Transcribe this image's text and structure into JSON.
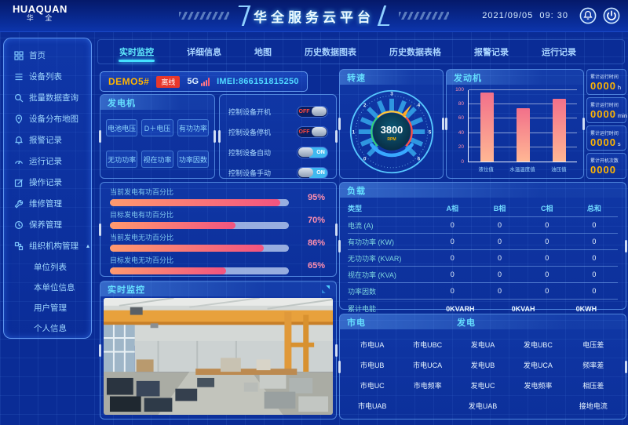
{
  "header": {
    "logo_title": "HUAQUAN",
    "logo_subtitle": "华 全",
    "app_title": "华全服务云平台",
    "date": "2021/09/05",
    "time": "09: 30"
  },
  "sidebar": {
    "items": [
      {
        "label": "首页",
        "icon": "home-grid"
      },
      {
        "label": "设备列表",
        "icon": "device-list"
      },
      {
        "label": "批量数据查询",
        "icon": "search"
      },
      {
        "label": "设备分布地图",
        "icon": "map-pin"
      },
      {
        "label": "报警记录",
        "icon": "alarm"
      },
      {
        "label": "运行记录",
        "icon": "runtime"
      },
      {
        "label": "操作记录",
        "icon": "edit"
      },
      {
        "label": "维修管理",
        "icon": "repair"
      },
      {
        "label": "保养管理",
        "icon": "maintenance"
      },
      {
        "label": "组织机构管理",
        "icon": "organization",
        "expanded": true
      }
    ],
    "subitems": [
      {
        "label": "单位列表"
      },
      {
        "label": "本单位信息"
      },
      {
        "label": "用户管理"
      },
      {
        "label": "个人信息"
      }
    ]
  },
  "tabs": [
    {
      "label": "实时监控",
      "active": true
    },
    {
      "label": "详细信息",
      "active": false
    },
    {
      "label": "地图",
      "active": false
    },
    {
      "label": "历史数据图表",
      "active": false
    },
    {
      "label": "历史数据表格",
      "active": false
    },
    {
      "label": "报警记录",
      "active": false
    },
    {
      "label": "运行记录",
      "active": false
    }
  ],
  "device": {
    "name": "DEMO5#",
    "status_badge": "离线",
    "network": "5G",
    "imei": "IMEI:866151815250"
  },
  "generator": {
    "title": "发电机",
    "buttons": [
      "电池电压",
      "D＋电压",
      "有功功率",
      "无功功率",
      "视在功率",
      "功率因数"
    ]
  },
  "controls": {
    "items": [
      {
        "label": "控制设备开机",
        "state": "OFF"
      },
      {
        "label": "控制设备停机",
        "state": "OFF"
      },
      {
        "label": "控制设备自动",
        "state": "ON"
      },
      {
        "label": "控制设备手动",
        "state": "ON"
      }
    ]
  },
  "rpm_gauge": {
    "title": "转速",
    "value": "3800",
    "unit": "RPM",
    "ticks": [
      "0",
      "1",
      "2",
      "3",
      "4",
      "5",
      "6"
    ],
    "min": 0,
    "max": 6
  },
  "chart_data": {
    "type": "bar",
    "title": "发动机",
    "categories": [
      "液位值",
      "水温温度值",
      "油压值"
    ],
    "values": [
      97,
      75,
      88
    ],
    "xlabel": "",
    "ylabel": "",
    "ylim": [
      0,
      100
    ],
    "yticks": [
      0,
      20,
      40,
      60,
      80,
      100
    ],
    "grid": true,
    "bar_gradient": [
      "#f2708a",
      "#ffb794"
    ]
  },
  "stats": {
    "items": [
      {
        "label": "累计运行时间",
        "value": "0000",
        "unit": "h"
      },
      {
        "label": "累计运行时间",
        "value": "0000",
        "unit": "min"
      },
      {
        "label": "累计运行时间",
        "value": "0000",
        "unit": "s"
      },
      {
        "label": "累计开机次数",
        "value": "0000",
        "unit": ""
      }
    ]
  },
  "percentages": {
    "items": [
      {
        "label": "当前发电有功百分比",
        "percent": 95,
        "text": "95%"
      },
      {
        "label": "目标发电有功百分比",
        "percent": 70,
        "text": "70%"
      },
      {
        "label": "当前发电无功百分比",
        "percent": 86,
        "text": "86%"
      },
      {
        "label": "目标发电无功百分比",
        "percent": 65,
        "text": "65%"
      }
    ]
  },
  "load": {
    "title": "负载",
    "headers": [
      "类型",
      "A相",
      "B相",
      "C相",
      "总和"
    ],
    "rows": [
      {
        "label": "电流 (A)",
        "values": [
          "0",
          "0",
          "0",
          "0"
        ]
      },
      {
        "label": "有功功率 (KW)",
        "values": [
          "0",
          "0",
          "0",
          "0"
        ]
      },
      {
        "label": "无功功率 (KVAR)",
        "values": [
          "0",
          "0",
          "0",
          "0"
        ]
      },
      {
        "label": "视在功率 (KVA)",
        "values": [
          "0",
          "0",
          "0",
          "0"
        ]
      },
      {
        "label": "功率因数",
        "values": [
          "0",
          "0",
          "0",
          "0"
        ]
      }
    ],
    "energy": {
      "label": "累计电能",
      "values": [
        "0KVARH",
        "0KVAH",
        "0KWH"
      ]
    }
  },
  "video": {
    "title": "实时监控"
  },
  "power": {
    "title_mains": "市电",
    "title_gen": "发电",
    "cells": [
      [
        "市电UA",
        "市电UBC",
        "发电UA",
        "发电UBC",
        "电压差"
      ],
      [
        "市电UB",
        "市电UCA",
        "发电UB",
        "发电UCA",
        "频率差"
      ],
      [
        "市电UC",
        "市电频率",
        "发电UC",
        "发电频率",
        "相压差"
      ],
      [
        "市电UAB",
        "",
        "发电UAB",
        "",
        "接地电流"
      ]
    ]
  },
  "colors": {
    "accent_cyan": "#5fe0ff",
    "accent_orange": "#ffb400",
    "alert_red": "#e8382c",
    "pink": "#ff8fae",
    "bar_top": "#f2708a",
    "bar_bottom": "#ffb794"
  }
}
